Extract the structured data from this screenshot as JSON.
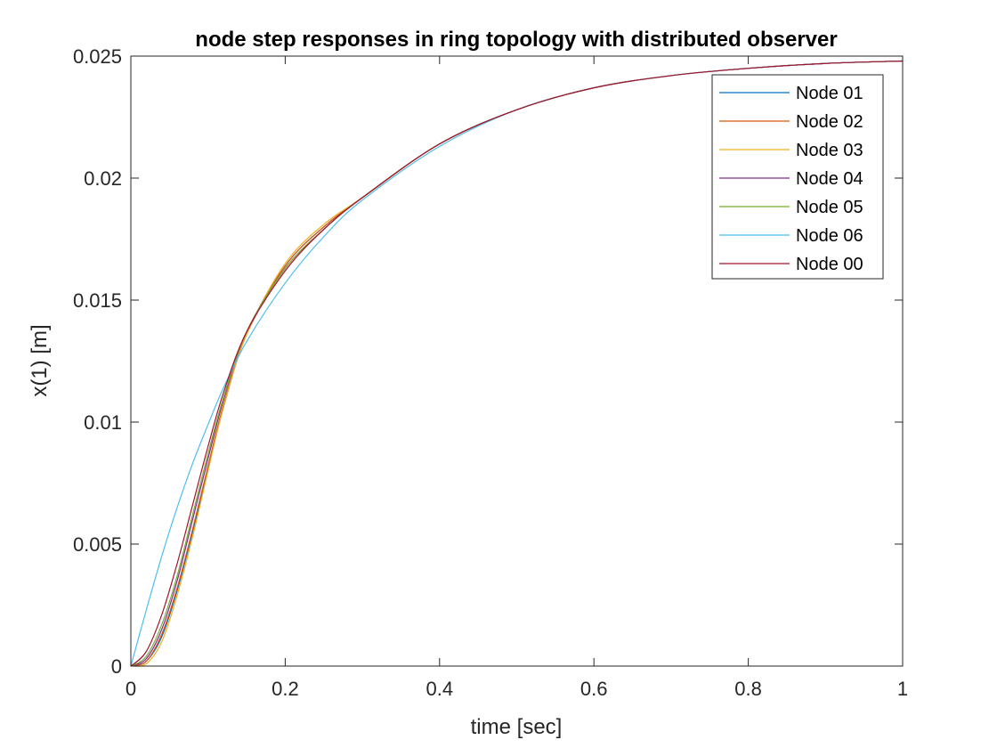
{
  "chart_data": {
    "type": "line",
    "title": "node step responses in ring topology with distributed observer",
    "xlabel": "time [sec]",
    "ylabel": "x(1) [m]",
    "xlim": [
      0,
      1
    ],
    "ylim": [
      0,
      0.025
    ],
    "x_ticks": [
      0,
      0.2,
      0.4,
      0.6,
      0.8,
      1
    ],
    "x_tick_labels": [
      "0",
      "0.2",
      "0.4",
      "0.6",
      "0.8",
      "1"
    ],
    "y_ticks": [
      0,
      0.005,
      0.01,
      0.015,
      0.02,
      0.025
    ],
    "y_tick_labels": [
      "0",
      "0.005",
      "0.01",
      "0.015",
      "0.02",
      "0.025"
    ],
    "grid": false,
    "legend_position": "top-right",
    "x": [
      0,
      0.02,
      0.04,
      0.06,
      0.08,
      0.1,
      0.12,
      0.15,
      0.2,
      0.25,
      0.3,
      0.4,
      0.5,
      0.6,
      0.7,
      0.8,
      0.9,
      1.0
    ],
    "series": [
      {
        "name": "Node 01",
        "color": "#0072BD",
        "values": [
          0,
          0.0002,
          0.0012,
          0.0031,
          0.0055,
          0.0081,
          0.0106,
          0.0136,
          0.0164,
          0.018,
          0.0192,
          0.0214,
          0.0228,
          0.0237,
          0.0242,
          0.0245,
          0.0247,
          0.0248
        ]
      },
      {
        "name": "Node 02",
        "color": "#D95319",
        "values": [
          0,
          0.0002,
          0.0013,
          0.0032,
          0.0056,
          0.0082,
          0.0107,
          0.0136,
          0.0164,
          0.018,
          0.0192,
          0.0214,
          0.0228,
          0.0237,
          0.0242,
          0.0245,
          0.0247,
          0.0248
        ]
      },
      {
        "name": "Node 03",
        "color": "#EDB120",
        "values": [
          0,
          0.0001,
          0.001,
          0.0029,
          0.0053,
          0.008,
          0.0106,
          0.0136,
          0.0165,
          0.0181,
          0.0192,
          0.0214,
          0.0228,
          0.0237,
          0.0242,
          0.0245,
          0.0247,
          0.0248
        ]
      },
      {
        "name": "Node 04",
        "color": "#7E2F8E",
        "values": [
          0,
          0.0003,
          0.0015,
          0.0035,
          0.006,
          0.0085,
          0.0109,
          0.0137,
          0.0163,
          0.0179,
          0.0192,
          0.0214,
          0.0228,
          0.0237,
          0.0242,
          0.0245,
          0.0247,
          0.0248
        ]
      },
      {
        "name": "Node 05",
        "color": "#77AC30",
        "values": [
          0,
          0.0004,
          0.0017,
          0.0037,
          0.0062,
          0.0087,
          0.011,
          0.0137,
          0.0163,
          0.0179,
          0.0192,
          0.0214,
          0.0228,
          0.0237,
          0.0242,
          0.0245,
          0.0247,
          0.0248
        ]
      },
      {
        "name": "Node 06",
        "color": "#4DBEEE",
        "values": [
          0,
          0.0023,
          0.0045,
          0.0065,
          0.0083,
          0.0099,
          0.0114,
          0.0133,
          0.0157,
          0.0176,
          0.0191,
          0.0213,
          0.0228,
          0.0237,
          0.0242,
          0.0245,
          0.0247,
          0.0248
        ]
      },
      {
        "name": "Node 00",
        "color": "#A2142F",
        "values": [
          0,
          0.0006,
          0.0021,
          0.0042,
          0.0066,
          0.009,
          0.0112,
          0.0137,
          0.0162,
          0.0179,
          0.0192,
          0.0214,
          0.0228,
          0.0237,
          0.0242,
          0.0245,
          0.0247,
          0.0248
        ]
      }
    ]
  }
}
